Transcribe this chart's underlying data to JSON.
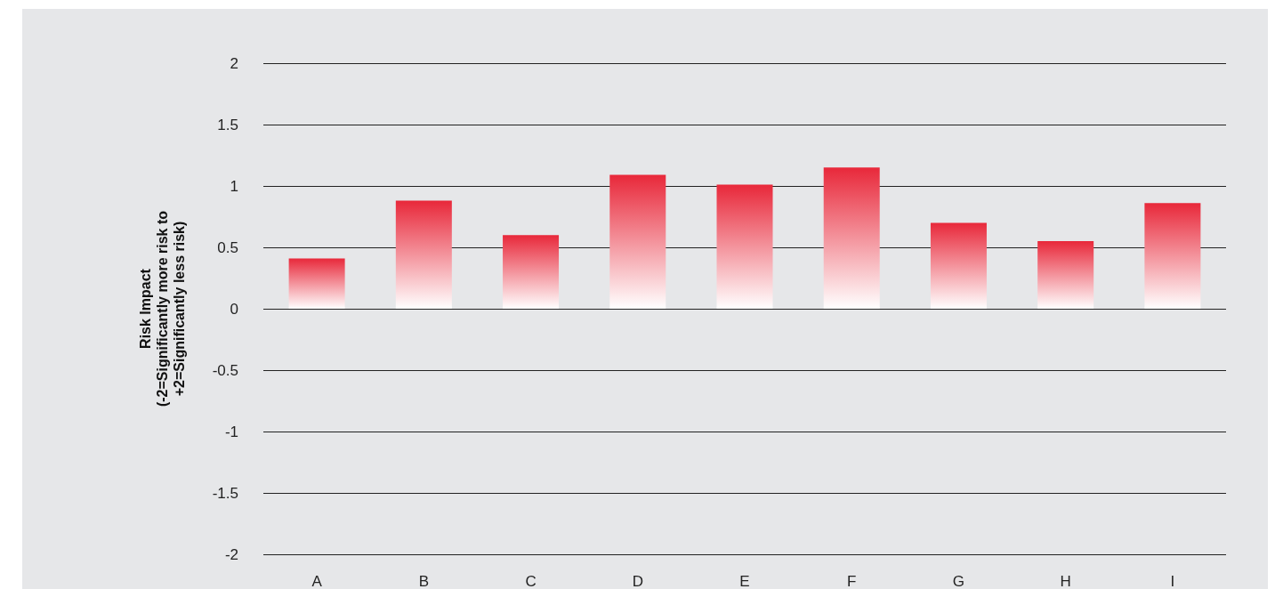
{
  "chart_data": {
    "type": "bar",
    "ylabel": "Risk Impact\n(-2=Significantly more risk to\n+2=Significantly less risk)",
    "categories": [
      "A",
      "B",
      "C",
      "D",
      "E",
      "F",
      "G",
      "H",
      "I"
    ],
    "values": [
      0.41,
      0.88,
      0.6,
      1.09,
      1.01,
      1.15,
      0.7,
      0.55,
      0.86
    ],
    "color": "#e8283a",
    "ylim": [
      -2,
      2
    ],
    "yticks": [
      -2,
      -1.5,
      -1,
      -0.5,
      0,
      0.5,
      1,
      1.5,
      2
    ],
    "grid": "y"
  }
}
